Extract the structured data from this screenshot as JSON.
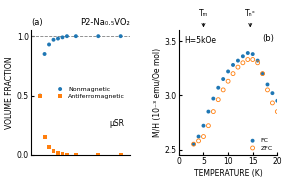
{
  "chart_data": [
    {
      "type": "scatter",
      "title": "P2-Na₀.₅VO₂",
      "label": "(a)",
      "ylabel": "VOLUME FRACTION",
      "annotation": "μSR",
      "xlim": [
        0,
        22
      ],
      "xticks": [],
      "ylim": [
        0,
        1.05
      ],
      "yticks": [
        {
          "value": 0,
          "label": "0.0"
        },
        {
          "value": 0.5,
          "label": "0.5"
        },
        {
          "value": 1,
          "label": "1.0"
        }
      ],
      "tick_labels": "y",
      "hline": 1.0,
      "legend": "center right",
      "series": [
        {
          "name": "Nonmagnetic",
          "marker": "circle",
          "x": [
            2,
            3,
            4,
            5,
            6,
            7,
            8,
            10,
            15,
            20
          ],
          "values": [
            0.5,
            0.85,
            0.93,
            0.97,
            0.98,
            0.99,
            1.0,
            1.0,
            1.0,
            1.0
          ]
        },
        {
          "name": "Antiferromagnetic",
          "marker": "square",
          "x": [
            2,
            3,
            4,
            5,
            6,
            7,
            8,
            10,
            15,
            20
          ],
          "values": [
            0.5,
            0.15,
            0.07,
            0.03,
            0.02,
            0.01,
            0.0,
            0.0,
            0.0,
            0.0
          ]
        }
      ]
    },
    {
      "type": "scatter",
      "label": "(b)",
      "ylabel": "M/H (10⁻³ emu/Oe mol)",
      "xlabel": "TEMPERATURE (K)",
      "annotation": "H=5kOe",
      "xlim": [
        0,
        20
      ],
      "xticks": [
        0,
        5,
        10,
        15,
        20
      ],
      "ylim": [
        2.45,
        3.6
      ],
      "yticks": [
        {
          "value": 2.5,
          "label": "2.5"
        },
        {
          "value": 3.0,
          "label": "3.0"
        },
        {
          "value": 3.5,
          "label": "3.5"
        }
      ],
      "legend": "lower right",
      "markers": [
        {
          "label": "Tₘ",
          "x": 5
        },
        {
          "label": "Tₙˣ",
          "x": 14.5
        }
      ],
      "series": [
        {
          "name": "FC",
          "marker": "circle",
          "x": [
            3,
            4,
            5,
            6,
            7,
            8,
            9,
            10,
            11,
            12,
            13,
            14,
            15,
            16,
            17,
            18,
            19,
            20
          ],
          "values": [
            2.55,
            2.62,
            2.72,
            2.85,
            2.97,
            3.07,
            3.15,
            3.22,
            3.28,
            3.32,
            3.36,
            3.39,
            3.38,
            3.32,
            3.2,
            3.1,
            3.02,
            2.95
          ]
        },
        {
          "name": "ZFC",
          "marker": "open circle",
          "x": [
            3,
            4,
            5,
            6,
            7,
            8,
            9,
            10,
            11,
            12,
            13,
            14,
            15,
            16,
            17,
            18,
            19,
            20
          ],
          "values": [
            2.55,
            2.58,
            2.62,
            2.72,
            2.85,
            2.96,
            3.05,
            3.13,
            3.2,
            3.26,
            3.3,
            3.33,
            3.33,
            3.3,
            3.2,
            3.05,
            2.93,
            2.85
          ]
        }
      ]
    }
  ]
}
